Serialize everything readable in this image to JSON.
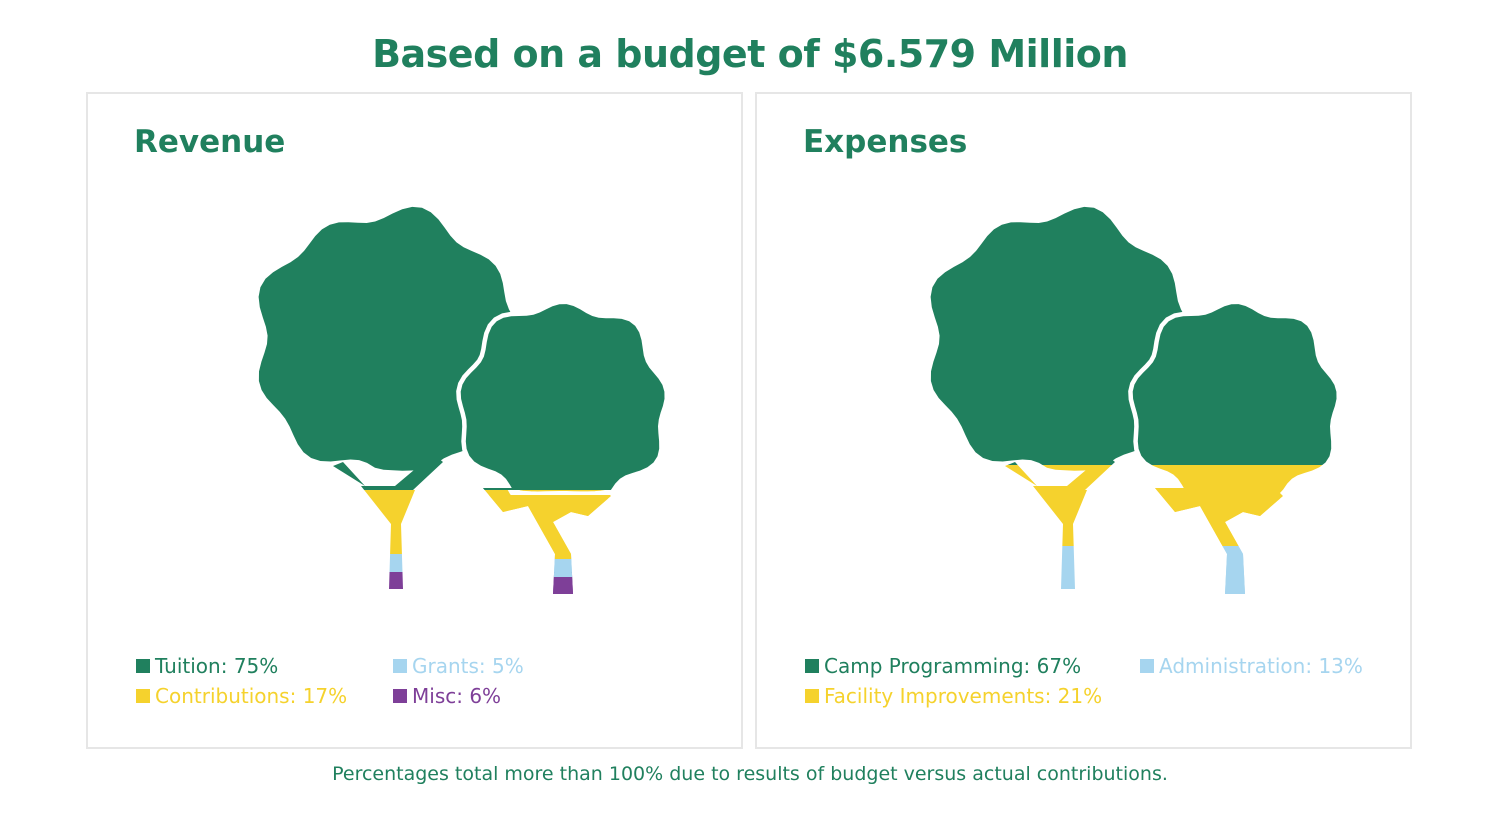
{
  "title": "Based on a budget of $6.579 Million",
  "footnote": "Percentages total more than 100% due to results of budget versus actual contributions.",
  "colors": {
    "green": "#20805E",
    "yellow": "#F5D22D",
    "blue": "#A6D5EF",
    "purple": "#7E3F98"
  },
  "chart_data": [
    {
      "type": "pie",
      "title": "Revenue",
      "categories": [
        "Tuition",
        "Contributions",
        "Grants",
        "Misc"
      ],
      "values": [
        75,
        17,
        5,
        6
      ],
      "labels": [
        "Tuition: 75%",
        "Contributions: 17%",
        "Grants: 5%",
        "Misc: 6%"
      ],
      "colors": [
        "#20805E",
        "#F5D22D",
        "#A6D5EF",
        "#7E3F98"
      ]
    },
    {
      "type": "pie",
      "title": "Expenses",
      "categories": [
        "Camp Programming",
        "Facility Improvements",
        "Administration"
      ],
      "values": [
        67,
        21,
        13
      ],
      "labels": [
        "Camp Programming: 67%",
        "Facility Improvements: 21%",
        "Administration: 13%"
      ],
      "colors": [
        "#20805E",
        "#F5D22D",
        "#A6D5EF"
      ]
    }
  ]
}
